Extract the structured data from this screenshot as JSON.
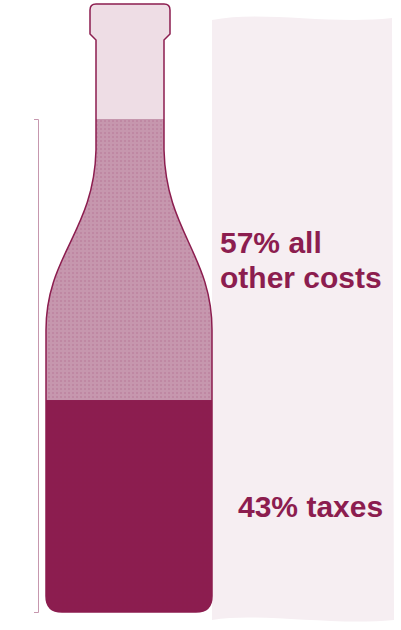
{
  "chart_data": {
    "type": "bar",
    "stacked": true,
    "categories": [
      null
    ],
    "series": [
      {
        "name": "taxes",
        "color": "#8c1d4f",
        "values": [
          43
        ],
        "value_labels": [
          "43%"
        ]
      },
      {
        "name": "all other costs",
        "color": "#c697ae",
        "values": [
          57
        ],
        "value_labels": [
          "57%"
        ]
      }
    ],
    "ylim": [
      0,
      100
    ],
    "data_labels": true,
    "tick_labels": false
  }
}
